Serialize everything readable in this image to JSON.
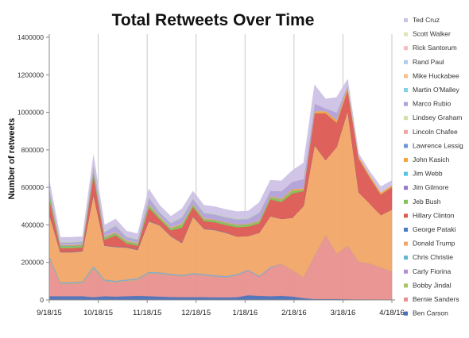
{
  "chart_data": {
    "type": "area",
    "stacked": true,
    "title": "Total Retweets Over Time",
    "xlabel": "",
    "ylabel": "Number of retweets",
    "ylim": [
      0,
      1400000
    ],
    "yticks": [
      0,
      200000,
      400000,
      600000,
      800000,
      1000000,
      1200000,
      1400000
    ],
    "ytick_labels": [
      "0",
      "200000",
      "400000",
      "600000",
      "800000",
      "1000000",
      "1200000",
      "1400000"
    ],
    "xtick_labels": [
      "9/18/15",
      "10/18/15",
      "11/18/15",
      "12/18/15",
      "1/18/16",
      "2/18/16",
      "3/18/16",
      "4/18/16"
    ],
    "x": [
      "2015-09-18",
      "2015-09-25",
      "2015-10-02",
      "2015-10-09",
      "2015-10-16",
      "2015-10-23",
      "2015-10-30",
      "2015-11-06",
      "2015-11-13",
      "2015-11-20",
      "2015-11-27",
      "2015-12-04",
      "2015-12-11",
      "2015-12-18",
      "2015-12-25",
      "2016-01-01",
      "2016-01-08",
      "2016-01-15",
      "2016-01-22",
      "2016-01-29",
      "2016-02-05",
      "2016-02-12",
      "2016-02-19",
      "2016-02-26",
      "2016-03-04",
      "2016-03-11",
      "2016-03-18",
      "2016-03-25",
      "2016-04-01",
      "2016-04-08",
      "2016-04-15",
      "2016-04-22"
    ],
    "grid": "vertical",
    "legend_position": "right",
    "series": [
      {
        "name": "Ben Carson",
        "color": "#4a6fb8",
        "values": [
          20000,
          20000,
          20000,
          20000,
          15000,
          20000,
          18000,
          20000,
          22000,
          20000,
          18000,
          16000,
          15000,
          15000,
          15000,
          14000,
          14000,
          15000,
          25000,
          22000,
          20000,
          22000,
          18000,
          10000,
          5000,
          5000,
          5000,
          4000,
          3000,
          3000,
          2000,
          2000
        ]
      },
      {
        "name": "Bernie Sanders",
        "color": "#e8908f",
        "values": [
          200000,
          65000,
          65000,
          70000,
          150000,
          80000,
          75000,
          80000,
          85000,
          120000,
          120000,
          115000,
          110000,
          120000,
          115000,
          110000,
          105000,
          115000,
          130000,
          100000,
          150000,
          170000,
          140000,
          110000,
          230000,
          340000,
          240000,
          285000,
          200000,
          190000,
          170000,
          150000
        ]
      },
      {
        "name": "Bobby Jindal",
        "color": "#a9c464",
        "values": [
          5000,
          3000,
          3000,
          3000,
          5000,
          3000,
          3000,
          3000,
          3000,
          3000,
          3000,
          2000,
          2000,
          2000,
          2000,
          2000,
          2000,
          2000,
          0,
          0,
          0,
          0,
          0,
          0,
          0,
          0,
          0,
          0,
          0,
          0,
          0,
          0
        ]
      },
      {
        "name": "Carly Fiorina",
        "color": "#b68dcf",
        "values": [
          5000,
          3000,
          3000,
          3000,
          5000,
          3000,
          3000,
          3000,
          3000,
          3000,
          3000,
          3000,
          3000,
          3000,
          3000,
          3000,
          3000,
          3000,
          3000,
          3000,
          3000,
          0,
          0,
          0,
          0,
          0,
          0,
          0,
          0,
          0,
          0,
          0
        ]
      },
      {
        "name": "Chris Christie",
        "color": "#62b3d8",
        "values": [
          5000,
          3000,
          3000,
          3000,
          5000,
          3000,
          3000,
          3000,
          3000,
          3000,
          3000,
          3000,
          3000,
          3000,
          3000,
          3000,
          3000,
          3000,
          3000,
          3000,
          3000,
          0,
          0,
          0,
          0,
          0,
          0,
          0,
          0,
          0,
          0,
          0
        ]
      },
      {
        "name": "Donald Trump",
        "color": "#f2a566",
        "values": [
          220000,
          160000,
          160000,
          160000,
          380000,
          180000,
          180000,
          170000,
          150000,
          270000,
          250000,
          200000,
          170000,
          300000,
          240000,
          240000,
          230000,
          200000,
          180000,
          230000,
          270000,
          240000,
          280000,
          380000,
          590000,
          400000,
          570000,
          720000,
          370000,
          320000,
          280000,
          330000
        ]
      },
      {
        "name": "George Pataki",
        "color": "#4a7cc2",
        "values": [
          3000,
          2000,
          2000,
          2000,
          3000,
          2000,
          2000,
          2000,
          2000,
          2000,
          2000,
          2000,
          2000,
          2000,
          2000,
          2000,
          2000,
          0,
          0,
          0,
          0,
          0,
          0,
          0,
          0,
          0,
          0,
          0,
          0,
          0,
          0,
          0
        ]
      },
      {
        "name": "Hillary Clinton",
        "color": "#dc5a52",
        "values": [
          80000,
          20000,
          20000,
          20000,
          100000,
          30000,
          60000,
          20000,
          20000,
          70000,
          30000,
          30000,
          80000,
          50000,
          40000,
          40000,
          40000,
          50000,
          50000,
          50000,
          90000,
          90000,
          130000,
          80000,
          170000,
          250000,
          130000,
          110000,
          180000,
          140000,
          110000,
          120000
        ]
      },
      {
        "name": "Jeb Bush",
        "color": "#7fc258",
        "values": [
          20000,
          10000,
          10000,
          10000,
          15000,
          10000,
          10000,
          10000,
          10000,
          15000,
          10000,
          10000,
          15000,
          10000,
          10000,
          10000,
          10000,
          10000,
          10000,
          10000,
          10000,
          12000,
          15000,
          5000,
          0,
          0,
          0,
          0,
          0,
          0,
          0,
          0
        ]
      },
      {
        "name": "Jim Gilmore",
        "color": "#9579c2",
        "values": [
          2000,
          1000,
          1000,
          1000,
          2000,
          1000,
          1000,
          1000,
          1000,
          1000,
          1000,
          1000,
          1000,
          1000,
          1000,
          1000,
          1000,
          1000,
          1000,
          1000,
          1000,
          0,
          0,
          0,
          0,
          0,
          0,
          0,
          0,
          0,
          0,
          0
        ]
      },
      {
        "name": "Jim Webb",
        "color": "#55c2de",
        "values": [
          2000,
          1000,
          1000,
          1000,
          2000,
          1000,
          1000,
          0,
          0,
          0,
          0,
          0,
          0,
          0,
          0,
          0,
          0,
          0,
          0,
          0,
          0,
          0,
          0,
          0,
          0,
          0,
          0,
          0,
          0,
          0,
          0,
          0
        ]
      },
      {
        "name": "John Kasich",
        "color": "#f2a33e",
        "values": [
          5000,
          3000,
          3000,
          3000,
          5000,
          4000,
          4000,
          4000,
          4000,
          5000,
          4000,
          4000,
          5000,
          4000,
          4000,
          4000,
          4000,
          4000,
          4000,
          5000,
          6000,
          6000,
          8000,
          10000,
          12000,
          12000,
          15000,
          18000,
          12000,
          12000,
          12000,
          10000
        ]
      },
      {
        "name": "Lawrence Lessig",
        "color": "#6a98d4",
        "values": [
          2000,
          1000,
          1000,
          1000,
          2000,
          1000,
          1000,
          1000,
          0,
          0,
          0,
          0,
          0,
          0,
          0,
          0,
          0,
          0,
          0,
          0,
          0,
          0,
          0,
          0,
          0,
          0,
          0,
          0,
          0,
          0,
          0,
          0
        ]
      },
      {
        "name": "Lincoln Chafee",
        "color": "#f0a6a4",
        "values": [
          2000,
          1000,
          1000,
          1000,
          2000,
          1000,
          1000,
          0,
          0,
          0,
          0,
          0,
          0,
          0,
          0,
          0,
          0,
          0,
          0,
          0,
          0,
          0,
          0,
          0,
          0,
          0,
          0,
          0,
          0,
          0,
          0,
          0
        ]
      },
      {
        "name": "Lindsey Graham",
        "color": "#cfe0a6",
        "values": [
          3000,
          2000,
          2000,
          2000,
          3000,
          2000,
          2000,
          2000,
          2000,
          2000,
          2000,
          2000,
          2000,
          2000,
          2000,
          0,
          0,
          0,
          0,
          0,
          0,
          0,
          0,
          0,
          0,
          0,
          0,
          0,
          0,
          0,
          0,
          0
        ]
      },
      {
        "name": "Marco Rubio",
        "color": "#b2a0d8",
        "values": [
          20000,
          10000,
          10000,
          10000,
          25000,
          20000,
          30000,
          15000,
          15000,
          30000,
          20000,
          20000,
          30000,
          25000,
          25000,
          25000,
          25000,
          25000,
          25000,
          40000,
          30000,
          40000,
          40000,
          50000,
          40000,
          15000,
          40000,
          10000,
          0,
          0,
          0,
          0
        ]
      },
      {
        "name": "Martin O'Malley",
        "color": "#7fd3e6",
        "values": [
          3000,
          2000,
          2000,
          2000,
          3000,
          2000,
          2000,
          2000,
          2000,
          2000,
          2000,
          2000,
          2000,
          2000,
          2000,
          2000,
          2000,
          2000,
          2000,
          2000,
          0,
          0,
          0,
          0,
          0,
          0,
          0,
          0,
          0,
          0,
          0,
          0
        ]
      },
      {
        "name": "Mike Huckabee",
        "color": "#f7c08c",
        "values": [
          3000,
          2000,
          2000,
          2000,
          3000,
          2000,
          2000,
          2000,
          2000,
          2000,
          2000,
          2000,
          2000,
          2000,
          2000,
          2000,
          2000,
          2000,
          2000,
          0,
          0,
          0,
          0,
          0,
          0,
          0,
          0,
          0,
          0,
          0,
          0,
          0
        ]
      },
      {
        "name": "Rand Paul",
        "color": "#aecbeb",
        "values": [
          5000,
          3000,
          3000,
          3000,
          5000,
          3000,
          3000,
          3000,
          3000,
          3000,
          3000,
          3000,
          3000,
          3000,
          3000,
          3000,
          3000,
          3000,
          3000,
          3000,
          0,
          0,
          0,
          0,
          0,
          0,
          0,
          0,
          0,
          0,
          0,
          0
        ]
      },
      {
        "name": "Rick Santorum",
        "color": "#f5bcbc",
        "values": [
          2000,
          1000,
          1000,
          1000,
          2000,
          1000,
          1000,
          1000,
          1000,
          1000,
          1000,
          1000,
          1000,
          1000,
          1000,
          1000,
          1000,
          1000,
          1000,
          1000,
          0,
          0,
          0,
          0,
          0,
          0,
          0,
          0,
          0,
          0,
          0,
          0
        ]
      },
      {
        "name": "Scott Walker",
        "color": "#dbe9b8",
        "values": [
          2000,
          1000,
          1000,
          0,
          0,
          0,
          0,
          0,
          0,
          0,
          0,
          0,
          0,
          0,
          0,
          0,
          0,
          0,
          0,
          0,
          0,
          0,
          0,
          0,
          0,
          0,
          0,
          0,
          0,
          0,
          0,
          0
        ]
      },
      {
        "name": "Ted Cruz",
        "color": "#cdc2e6",
        "values": [
          30000,
          20000,
          20000,
          20000,
          40000,
          30000,
          30000,
          25000,
          25000,
          40000,
          30000,
          30000,
          40000,
          35000,
          35000,
          35000,
          35000,
          35000,
          35000,
          50000,
          55000,
          55000,
          60000,
          85000,
          100000,
          50000,
          80000,
          30000,
          15000,
          20000,
          30000,
          25000
        ]
      }
    ]
  }
}
